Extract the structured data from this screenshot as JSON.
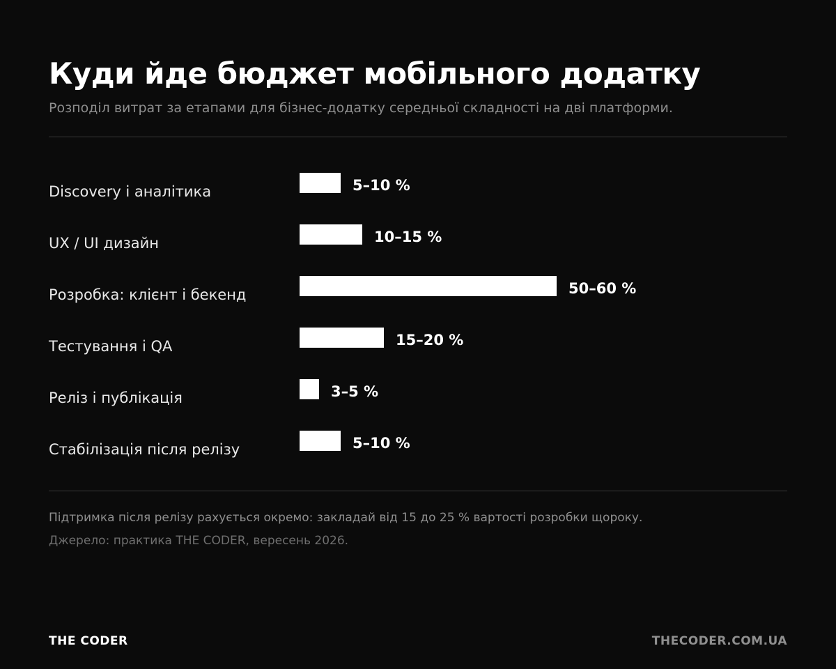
{
  "chart_data": {
    "type": "bar",
    "orientation": "horizontal",
    "title": "Куди йде бюджет мобільного додатку",
    "subtitle": "Розподіл витрат за етапами для бізнес-додатку середньої складності на дві платформи.",
    "categories": [
      "Discovery і аналітика",
      "UX / UI дизайн",
      "Розробка: клієнт і бекенд",
      "Тестування і QA",
      "Реліз і публікація",
      "Стабілізація після релізу"
    ],
    "ranges": [
      [
        5,
        10
      ],
      [
        10,
        15
      ],
      [
        50,
        60
      ],
      [
        15,
        20
      ],
      [
        3,
        5
      ],
      [
        5,
        10
      ]
    ],
    "value_labels": [
      "5–10 %",
      "10–15 %",
      "50–60 %",
      "15–20 %",
      "3–5 %",
      "5–10 %"
    ],
    "unit": "%",
    "grid": false,
    "legend": "none",
    "bar_color": "#ffffff"
  },
  "footer": {
    "note": "Підтримка після релізу рахується окремо: закладай від 15 до 25 % вартості розробки щороку.",
    "source": "Джерело: практика THE CODER, вересень 2026.",
    "brand": "THE CODER",
    "site": "THECODER.COM.UA"
  }
}
